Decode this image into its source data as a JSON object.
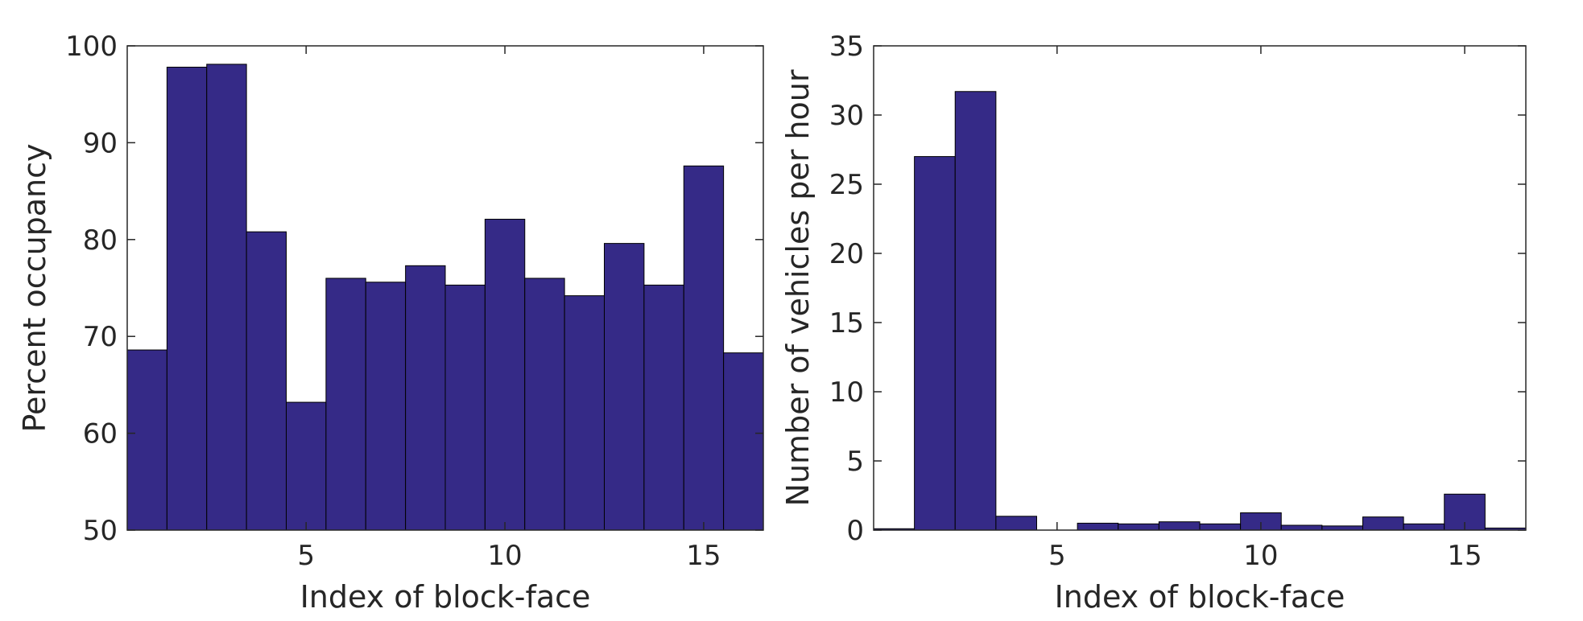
{
  "colors": {
    "bar": "#352a87",
    "axes": "#262626",
    "background": "#ffffff"
  },
  "chart_data": [
    {
      "type": "bar",
      "xlabel": "Index of block-face",
      "ylabel": "Percent occupancy",
      "categories": [
        1,
        2,
        3,
        4,
        5,
        6,
        7,
        8,
        9,
        10,
        11,
        12,
        13,
        14,
        15,
        16
      ],
      "values": [
        68.6,
        97.8,
        98.1,
        80.8,
        63.2,
        76.0,
        75.6,
        77.3,
        75.3,
        82.1,
        76.0,
        74.2,
        79.6,
        75.3,
        87.6,
        68.3
      ],
      "xlim": [
        0.5,
        16.5
      ],
      "ylim": [
        50,
        100
      ],
      "xticks": [
        5,
        10,
        15
      ],
      "yticks": [
        50,
        60,
        70,
        80,
        90,
        100
      ],
      "grid": false
    },
    {
      "type": "bar",
      "xlabel": "Index of block-face",
      "ylabel": "Number of vehicles per hour",
      "categories": [
        1,
        2,
        3,
        4,
        5,
        6,
        7,
        8,
        9,
        10,
        11,
        12,
        13,
        14,
        15,
        16
      ],
      "values": [
        0.1,
        27.0,
        31.7,
        1.0,
        0.0,
        0.5,
        0.45,
        0.6,
        0.45,
        1.25,
        0.35,
        0.3,
        0.95,
        0.45,
        2.6,
        0.15
      ],
      "xlim": [
        0.5,
        16.5
      ],
      "ylim": [
        0,
        35
      ],
      "xticks": [
        5,
        10,
        15
      ],
      "yticks": [
        0,
        5,
        10,
        15,
        20,
        25,
        30,
        35
      ],
      "grid": false
    }
  ]
}
